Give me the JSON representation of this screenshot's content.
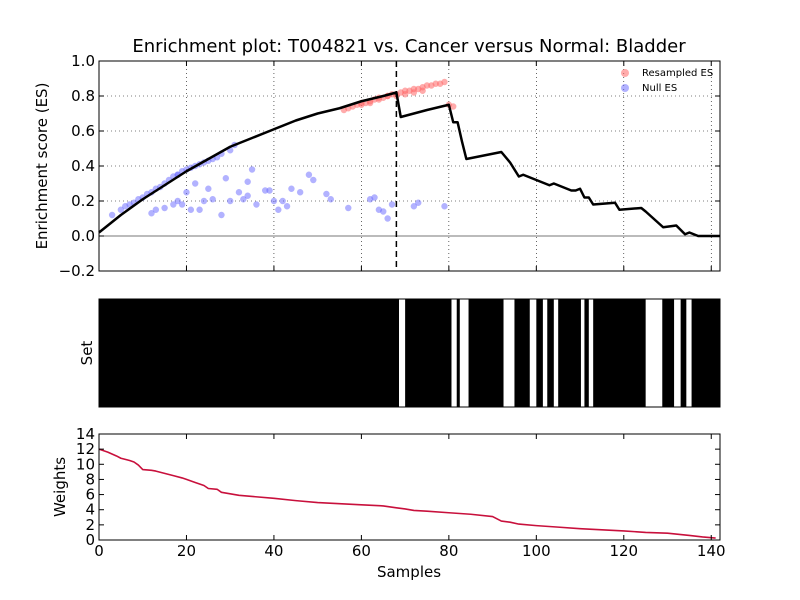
{
  "title": "Enrichment plot: T004821 vs. Cancer versus Normal: Bladder",
  "xlabel": "Samples",
  "colors": {
    "running_es": "#000000",
    "resampled_es": "#ff6666",
    "null_es": "#6666ff",
    "weights": "#c8103c",
    "set_bar": "#000000",
    "background": "#ffffff"
  },
  "chart_data": [
    {
      "id": "enrichment",
      "type": "line",
      "ylabel": "Enrichment score (ES)",
      "xlim": [
        0,
        142
      ],
      "ylim": [
        -0.2,
        1.0
      ],
      "grid": true,
      "legend_position": "top-right",
      "xticks": [
        0,
        20,
        40,
        60,
        80,
        100,
        120,
        140
      ],
      "yticks": [
        -0.2,
        0.0,
        0.2,
        0.4,
        0.6,
        0.8,
        1.0
      ],
      "ytick_labels": [
        "−0.2",
        "0.0",
        "0.2",
        "0.4",
        "0.6",
        "0.8",
        "1.0"
      ],
      "vline_x": 68,
      "legend": [
        {
          "label": "Resampled ES",
          "color": "#ff6666"
        },
        {
          "label": "Null ES",
          "color": "#6666ff"
        }
      ],
      "running_es": {
        "x": [
          0,
          5,
          10,
          15,
          20,
          25,
          30,
          35,
          40,
          45,
          50,
          55,
          60,
          65,
          68,
          69,
          75,
          80,
          81,
          82,
          83,
          84,
          92,
          94,
          96,
          97,
          98,
          102,
          103,
          104,
          108,
          109,
          110,
          111,
          112,
          113,
          118,
          119,
          124,
          125,
          129,
          132,
          134,
          135,
          137,
          142
        ],
        "y": [
          0.02,
          0.12,
          0.21,
          0.29,
          0.37,
          0.44,
          0.51,
          0.56,
          0.61,
          0.66,
          0.7,
          0.73,
          0.77,
          0.8,
          0.82,
          0.68,
          0.72,
          0.75,
          0.65,
          0.65,
          0.54,
          0.44,
          0.48,
          0.42,
          0.34,
          0.35,
          0.34,
          0.3,
          0.29,
          0.3,
          0.26,
          0.26,
          0.27,
          0.22,
          0.22,
          0.18,
          0.19,
          0.15,
          0.16,
          0.14,
          0.05,
          0.06,
          0.01,
          0.02,
          0.0,
          0.0
        ]
      },
      "resampled_es": {
        "x": [
          56,
          57,
          58,
          59,
          60,
          61,
          62,
          63,
          64,
          65,
          66,
          67,
          68,
          69,
          70,
          71,
          72,
          73,
          74,
          75,
          76,
          77,
          78,
          79,
          80,
          81,
          60,
          62,
          64,
          66,
          68,
          70,
          72,
          74
        ],
        "y": [
          0.72,
          0.73,
          0.74,
          0.75,
          0.76,
          0.76,
          0.77,
          0.78,
          0.79,
          0.79,
          0.8,
          0.81,
          0.81,
          0.82,
          0.83,
          0.83,
          0.84,
          0.84,
          0.85,
          0.86,
          0.86,
          0.87,
          0.87,
          0.88,
          0.75,
          0.74,
          0.75,
          0.76,
          0.78,
          0.8,
          0.8,
          0.81,
          0.82,
          0.83
        ]
      },
      "null_es": {
        "x": [
          3,
          5,
          6,
          7,
          8,
          9,
          10,
          11,
          12,
          13,
          14,
          15,
          16,
          17,
          18,
          19,
          20,
          21,
          22,
          23,
          24,
          25,
          26,
          27,
          28,
          30,
          31,
          12,
          13,
          15,
          17,
          18,
          19,
          20,
          21,
          22,
          23,
          24,
          25,
          26,
          28,
          29,
          30,
          32,
          33,
          34,
          35,
          36,
          38,
          40,
          41,
          42,
          43,
          44,
          46,
          48,
          52,
          53,
          57,
          62,
          63,
          64,
          65,
          66,
          67,
          72,
          73,
          79,
          49,
          39,
          34,
          18
        ],
        "y": [
          0.12,
          0.15,
          0.17,
          0.18,
          0.19,
          0.21,
          0.22,
          0.24,
          0.25,
          0.27,
          0.28,
          0.3,
          0.32,
          0.34,
          0.35,
          0.37,
          0.38,
          0.39,
          0.4,
          0.41,
          0.42,
          0.43,
          0.44,
          0.45,
          0.47,
          0.49,
          0.52,
          0.13,
          0.15,
          0.16,
          0.18,
          0.2,
          0.18,
          0.25,
          0.15,
          0.3,
          0.15,
          0.2,
          0.27,
          0.21,
          0.12,
          0.33,
          0.2,
          0.25,
          0.21,
          0.23,
          0.38,
          0.18,
          0.26,
          0.2,
          0.15,
          0.2,
          0.17,
          0.27,
          0.25,
          0.35,
          0.24,
          0.21,
          0.16,
          0.21,
          0.22,
          0.15,
          0.14,
          0.1,
          0.18,
          0.17,
          0.19,
          0.17,
          0.32,
          0.26,
          0.31,
          0.35
        ]
      }
    },
    {
      "id": "set",
      "type": "heatmap",
      "ylabel": "Set",
      "xlim": [
        0,
        142
      ],
      "white_gaps": [
        [
          68.6,
          70.0
        ],
        [
          80.6,
          81.8
        ],
        [
          82.5,
          84.5
        ],
        [
          92.5,
          95.0
        ],
        [
          98.5,
          100.0
        ],
        [
          101.5,
          102.5
        ],
        [
          104.0,
          105.0
        ],
        [
          110.2,
          111.0
        ],
        [
          112.0,
          113.0
        ],
        [
          125.0,
          128.8
        ],
        [
          131.5,
          133.0
        ],
        [
          134.3,
          135.5
        ]
      ]
    },
    {
      "id": "weights",
      "type": "line",
      "ylabel": "Weights",
      "xlabel": "Samples",
      "xlim": [
        0,
        142
      ],
      "ylim": [
        0,
        14
      ],
      "xticks": [
        0,
        20,
        40,
        60,
        80,
        100,
        120,
        140
      ],
      "yticks": [
        0,
        2,
        4,
        6,
        8,
        10,
        12,
        14
      ],
      "x": [
        0,
        2,
        4,
        5,
        7,
        8,
        9,
        10,
        12,
        13,
        15,
        17,
        19,
        20,
        22,
        24,
        25,
        27,
        28,
        30,
        32,
        34,
        40,
        45,
        50,
        55,
        60,
        65,
        68,
        70,
        72,
        75,
        80,
        85,
        90,
        92,
        94,
        96,
        100,
        105,
        110,
        115,
        120,
        125,
        130,
        135,
        138,
        141
      ],
      "y": [
        12.0,
        11.6,
        11.1,
        10.8,
        10.5,
        10.3,
        9.9,
        9.3,
        9.2,
        9.1,
        8.8,
        8.5,
        8.2,
        8.0,
        7.6,
        7.2,
        6.8,
        6.7,
        6.3,
        6.1,
        5.9,
        5.8,
        5.5,
        5.2,
        4.95,
        4.8,
        4.65,
        4.5,
        4.25,
        4.1,
        3.9,
        3.8,
        3.6,
        3.4,
        3.1,
        2.5,
        2.35,
        2.1,
        1.9,
        1.7,
        1.5,
        1.35,
        1.2,
        1.0,
        0.9,
        0.6,
        0.4,
        0.25
      ]
    }
  ]
}
